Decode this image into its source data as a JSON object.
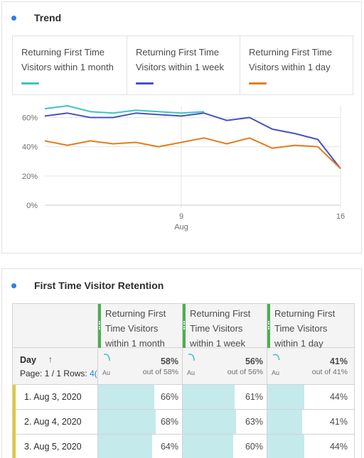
{
  "trend": {
    "title": "Trend",
    "legend": [
      {
        "label": "Returning First Time Visitors within 1 month",
        "color": "#3bc4c4"
      },
      {
        "label": "Returning First Time Visitors within 1 week",
        "color": "#4652c4"
      },
      {
        "label": "Returning First Time Visitors within 1 day",
        "color": "#e07e1d"
      }
    ]
  },
  "chart_data": {
    "type": "line",
    "x": [
      3,
      4,
      5,
      6,
      7,
      8,
      9,
      10,
      11,
      12,
      13,
      14,
      15,
      16
    ],
    "x_ticks": [
      {
        "x": 9,
        "label": "9",
        "sublabel": "Aug"
      },
      {
        "x": 16,
        "label": "16",
        "sublabel": ""
      }
    ],
    "y_ticks": [
      {
        "y": 0,
        "label": "0%"
      },
      {
        "y": 20,
        "label": "20%"
      },
      {
        "y": 40,
        "label": "40%"
      },
      {
        "y": 60,
        "label": "60%"
      }
    ],
    "ylim": [
      0,
      68
    ],
    "series": [
      {
        "name": "Returning First Time Visitors within 1 month",
        "color": "#3bc4c4",
        "values": [
          66,
          68,
          64,
          63,
          65,
          64,
          63,
          64,
          null,
          null,
          null,
          null,
          null,
          null
        ]
      },
      {
        "name": "Returning First Time Visitors within 1 week",
        "color": "#4652c4",
        "values": [
          61,
          63,
          60,
          60,
          63,
          62,
          61,
          63,
          58,
          60,
          52,
          49,
          45,
          25
        ]
      },
      {
        "name": "Returning First Time Visitors within 1 day",
        "color": "#e07e1d",
        "values": [
          44,
          41,
          44,
          42,
          43,
          40,
          43,
          46,
          42,
          46,
          39,
          41,
          40,
          25
        ]
      }
    ]
  },
  "retention": {
    "title": "First Time Visitor Retention",
    "columns": [
      {
        "label": "Returning First Time Visitors within 1 month",
        "summary_pct": "58%",
        "summary_out": "out of 58%",
        "au": "Au"
      },
      {
        "label": "Returning First Time Visitors within 1 week",
        "summary_pct": "56%",
        "summary_out": "out of 56%",
        "au": "Au"
      },
      {
        "label": "Returning First Time Visitors within 1 day",
        "summary_pct": "41%",
        "summary_out": "out of 41%",
        "au": "Au"
      }
    ],
    "dimension_label": "Day",
    "sort_icon": "arrow-up-icon",
    "page_info": "Page: 1 / 1 Rows: ",
    "page_info_link": "4(",
    "rows": [
      {
        "label": "1. Aug 3, 2020",
        "values": [
          "66%",
          "61%",
          "44%"
        ],
        "fractions": [
          0.66,
          0.61,
          0.44
        ]
      },
      {
        "label": "2. Aug 4, 2020",
        "values": [
          "68%",
          "63%",
          "41%"
        ],
        "fractions": [
          0.68,
          0.63,
          0.41
        ]
      },
      {
        "label": "3. Aug 5, 2020",
        "values": [
          "64%",
          "60%",
          "44%"
        ],
        "fractions": [
          0.64,
          0.6,
          0.44
        ]
      }
    ]
  }
}
